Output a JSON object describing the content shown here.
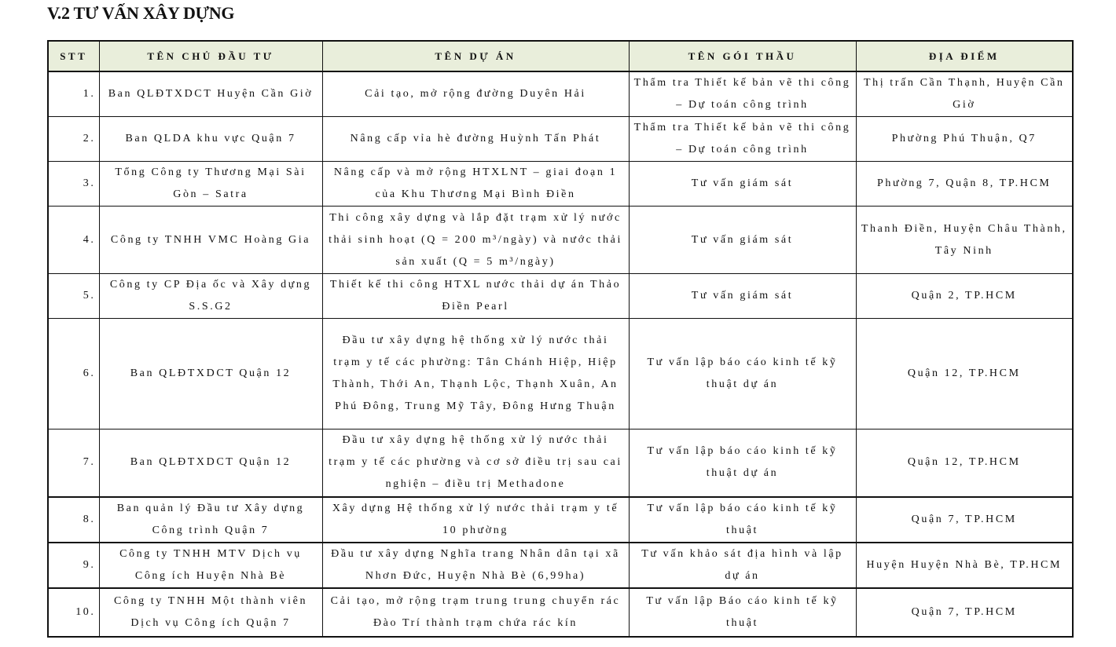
{
  "section_title": "V.2   TƯ VẤN XÂY DỰNG",
  "table": {
    "headers": [
      "STT",
      "TÊN CHỦ ĐẦU TƯ",
      "TÊN DỰ ÁN",
      "TÊN GÓI THẦU",
      "ĐỊA ĐIỂM"
    ],
    "rows": [
      {
        "stt": "1.",
        "owner": "Ban QLĐTXDCT Huyện Cần Giờ",
        "project": "Cải tạo, mở rộng đường Duyên Hải",
        "package": "Thẩm tra Thiết kế bản vẽ thi công – Dự toán công trình",
        "location": "Thị trấn Cần Thạnh, Huyện Cần Giờ"
      },
      {
        "stt": "2.",
        "owner": "Ban QLDA khu vực Quận 7",
        "project": "Nâng cấp vỉa hè đường Huỳnh Tấn Phát",
        "package": "Thẩm tra Thiết kế bản vẽ thi công – Dự toán công trình",
        "location": "Phường Phú Thuận, Q7"
      },
      {
        "stt": "3.",
        "owner": "Tổng Công ty Thương Mại Sài Gòn – Satra",
        "project": "Nâng cấp và mở rộng HTXLNT – giai đoạn 1 của Khu Thương Mại Bình Điền",
        "package": "Tư vấn giám sát",
        "location": "Phường 7, Quận 8, TP.HCM"
      },
      {
        "stt": "4.",
        "owner": "Công ty TNHH VMC Hoàng Gia",
        "project": "Thi công xây dựng và lắp đặt trạm xử lý nước thải sinh hoạt (Q = 200 m³/ngày) và nước thải sản xuất (Q = 5 m³/ngày)",
        "package": "Tư vấn giám sát",
        "location": "Thanh Điền, Huyện Châu Thành, Tây Ninh"
      },
      {
        "stt": "5.",
        "owner": "Công ty CP Địa ốc và Xây dựng S.S.G2",
        "project": "Thiết kế thi công HTXL nước thải dự án Thảo Điền Pearl",
        "package": "Tư vấn giám sát",
        "location": "Quận 2, TP.HCM"
      },
      {
        "stt": "6.",
        "owner": "Ban QLĐTXDCT Quận 12",
        "project": "Đầu tư xây dựng hệ thống xử lý nước thải trạm y tế các phường: Tân Chánh Hiệp, Hiệp Thành, Thới An, Thạnh Lộc, Thạnh Xuân, An Phú Đông, Trung Mỹ Tây, Đông Hưng Thuận",
        "package": "Tư vấn lập báo cáo kinh tế kỹ thuật dự án",
        "location": "Quận 12, TP.HCM"
      },
      {
        "stt": "7.",
        "owner": "Ban QLĐTXDCT Quận 12",
        "project": "Đầu tư xây dựng hệ thống xử lý nước thải trạm y tế các phường và cơ sở điều trị sau cai nghiện – điều trị Methadone",
        "package": "Tư vấn lập báo cáo kinh tế kỹ thuật dự án",
        "location": "Quận 12, TP.HCM"
      },
      {
        "stt": "8.",
        "owner": "Ban quản lý Đầu tư Xây dựng Công trình Quận 7",
        "project": "Xây dựng Hệ thống xử lý nước thải trạm y tế 10 phường",
        "package": "Tư vấn lập báo cáo kinh tế kỹ thuật",
        "location": "Quận 7, TP.HCM"
      },
      {
        "stt": "9.",
        "owner": "Công ty TNHH MTV Dịch vụ Công ích Huyện Nhà Bè",
        "project": "Đầu tư xây dựng Nghĩa trang Nhân dân tại xã Nhơn Đức, Huyện Nhà Bè (6,99ha)",
        "package": "Tư vấn khảo sát địa hình và lập dự án",
        "location": "Huyện Huyện Nhà Bè, TP.HCM"
      },
      {
        "stt": "10.",
        "owner": "Công ty TNHH Một thành viên Dịch vụ Công ích Quận 7",
        "project": "Cải tạo, mở rộng trạm trung trung chuyển rác Đào Trí thành trạm chứa rác kín",
        "package": "Tư vấn lập Báo cáo kinh tế kỹ thuật",
        "location": "Quận 7, TP.HCM"
      }
    ]
  }
}
